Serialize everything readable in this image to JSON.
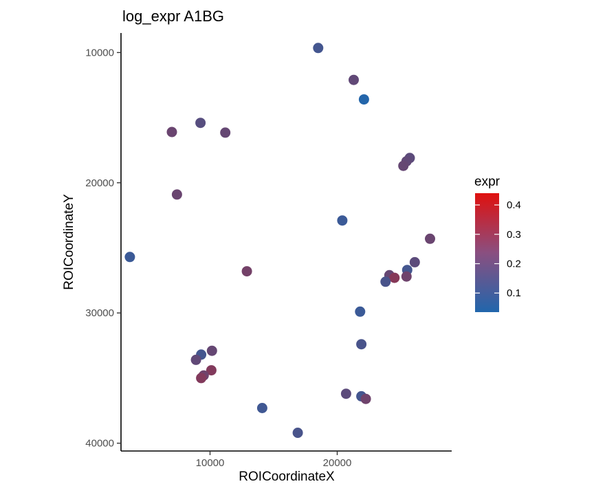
{
  "chart_data": {
    "type": "scatter",
    "title": "log_expr A1BG",
    "xlabel": "ROICoordinateX",
    "ylabel": "ROICoordinateY",
    "xlim": [
      3000,
      29000
    ],
    "ylim": [
      8500,
      40600
    ],
    "y_reversed": true,
    "x_ticks": [
      10000,
      20000
    ],
    "x_tick_labels": [
      "10000",
      "20000"
    ],
    "y_ticks": [
      10000,
      20000,
      30000,
      40000
    ],
    "y_tick_labels": [
      "10000",
      "20000",
      "30000",
      "40000"
    ],
    "grid": false,
    "legend": {
      "title": "expr",
      "placement": "right",
      "min": 0.035,
      "max": 0.44,
      "ticks": [
        0.1,
        0.2,
        0.3,
        0.4
      ],
      "tick_labels": [
        "0.1",
        "0.2",
        "0.3",
        "0.4"
      ],
      "colors": [
        "#2166ac",
        "#e0100e"
      ]
    },
    "points": [
      {
        "x": 18500,
        "y": 9650,
        "expr": 0.11
      },
      {
        "x": 21300,
        "y": 12100,
        "expr": 0.17
      },
      {
        "x": 22100,
        "y": 13600,
        "expr": 0.04
      },
      {
        "x": 9250,
        "y": 15400,
        "expr": 0.15
      },
      {
        "x": 7000,
        "y": 16100,
        "expr": 0.19
      },
      {
        "x": 11200,
        "y": 16150,
        "expr": 0.18
      },
      {
        "x": 25700,
        "y": 18100,
        "expr": 0.16
      },
      {
        "x": 25450,
        "y": 18350,
        "expr": 0.17
      },
      {
        "x": 25200,
        "y": 18700,
        "expr": 0.18
      },
      {
        "x": 7400,
        "y": 20900,
        "expr": 0.19
      },
      {
        "x": 20400,
        "y": 22900,
        "expr": 0.09
      },
      {
        "x": 27300,
        "y": 24300,
        "expr": 0.19
      },
      {
        "x": 3700,
        "y": 25700,
        "expr": 0.09
      },
      {
        "x": 26100,
        "y": 26100,
        "expr": 0.16
      },
      {
        "x": 25500,
        "y": 26700,
        "expr": 0.11
      },
      {
        "x": 12900,
        "y": 26800,
        "expr": 0.21
      },
      {
        "x": 24100,
        "y": 27100,
        "expr": 0.18
      },
      {
        "x": 24500,
        "y": 27300,
        "expr": 0.25
      },
      {
        "x": 25450,
        "y": 27200,
        "expr": 0.2
      },
      {
        "x": 23800,
        "y": 27600,
        "expr": 0.12
      },
      {
        "x": 21800,
        "y": 29900,
        "expr": 0.09
      },
      {
        "x": 21900,
        "y": 32400,
        "expr": 0.12
      },
      {
        "x": 9300,
        "y": 33200,
        "expr": 0.11
      },
      {
        "x": 10150,
        "y": 32900,
        "expr": 0.18
      },
      {
        "x": 8900,
        "y": 33600,
        "expr": 0.17
      },
      {
        "x": 10100,
        "y": 34400,
        "expr": 0.24
      },
      {
        "x": 9500,
        "y": 34800,
        "expr": 0.2
      },
      {
        "x": 9300,
        "y": 35000,
        "expr": 0.24
      },
      {
        "x": 20700,
        "y": 36200,
        "expr": 0.16
      },
      {
        "x": 21900,
        "y": 36400,
        "expr": 0.11
      },
      {
        "x": 22250,
        "y": 36600,
        "expr": 0.2
      },
      {
        "x": 14100,
        "y": 37300,
        "expr": 0.1
      },
      {
        "x": 16900,
        "y": 39200,
        "expr": 0.12
      }
    ]
  }
}
